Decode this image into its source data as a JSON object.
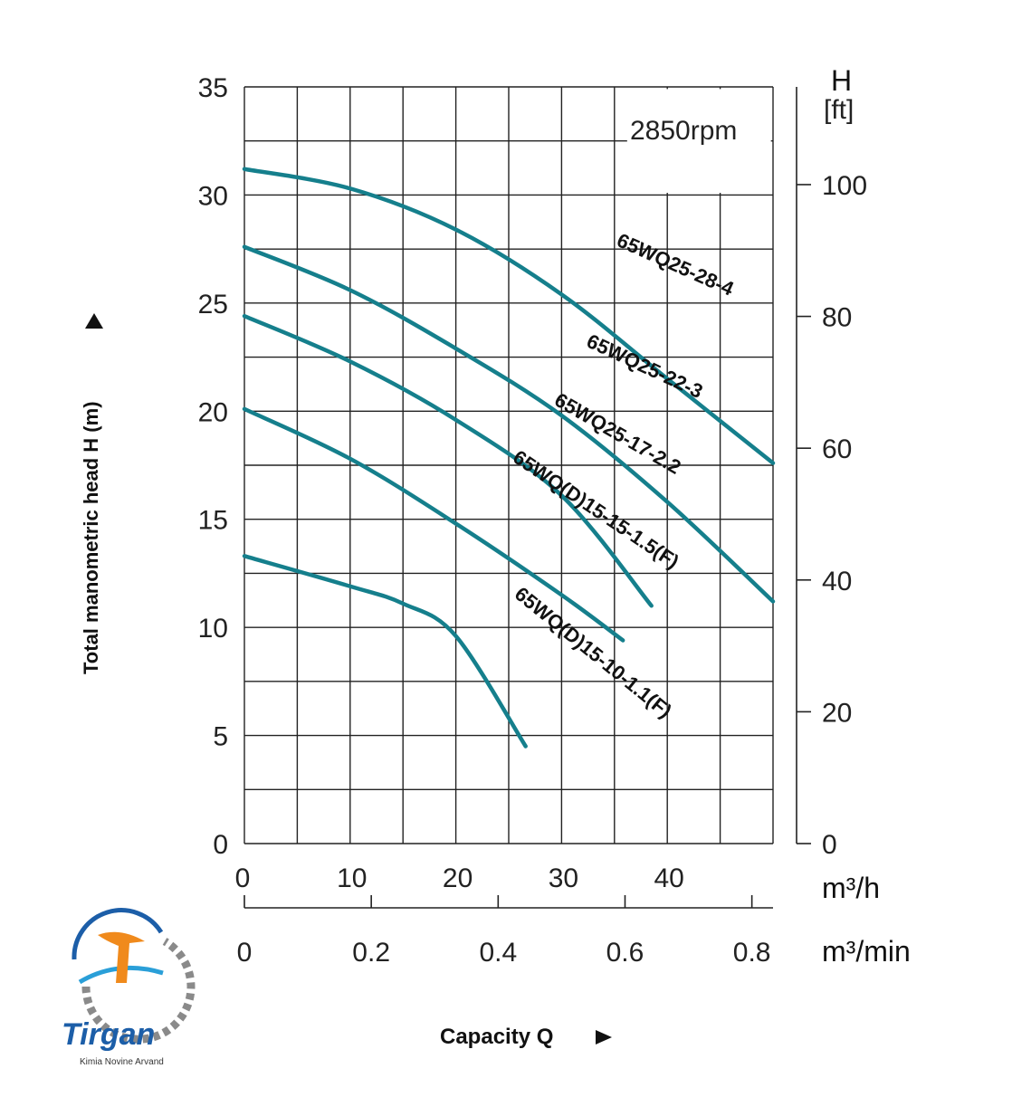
{
  "chart_data": {
    "type": "line",
    "speed_label": "2850rpm",
    "ylabel": "Total manometric head H (m)",
    "xlabel": "Capacity Q",
    "y_unit_right": [
      "H",
      "[ft]"
    ],
    "x_unit_primary": "m³/h",
    "x_unit_secondary": "m³/min",
    "ylim": [
      0,
      35
    ],
    "xlim": [
      0,
      50
    ],
    "y_ticks": [
      "0",
      "5",
      "10",
      "15",
      "20",
      "25",
      "30",
      "35"
    ],
    "x_ticks_m3h": [
      "0",
      "10",
      "20",
      "30",
      "40"
    ],
    "x_ticks_m3min": [
      "0",
      "0.2",
      "0.4",
      "0.6",
      "0.8"
    ],
    "ft_ticks": [
      "0",
      "20",
      "40",
      "60",
      "80",
      "100"
    ],
    "grid": true,
    "series": [
      {
        "name": "65WQ25-28-4",
        "x": [
          0,
          10,
          20,
          30,
          40,
          50
        ],
        "y": [
          31.2,
          30.3,
          28.4,
          25.4,
          21.5,
          17.6
        ]
      },
      {
        "name": "65WQ25-22-3",
        "x": [
          0,
          10,
          20,
          30,
          40,
          50
        ],
        "y": [
          27.6,
          25.6,
          22.9,
          19.8,
          15.8,
          11.2
        ]
      },
      {
        "name": "65WQ25-17-2.2",
        "x": [
          0,
          10,
          20,
          30,
          38.5
        ],
        "y": [
          24.4,
          22.3,
          19.6,
          16.1,
          11.0
        ]
      },
      {
        "name": "65WQ(D)15-15-1.5(F)",
        "x": [
          0,
          10,
          20,
          30,
          35.8
        ],
        "y": [
          20.1,
          17.8,
          14.8,
          11.5,
          9.4
        ]
      },
      {
        "name": "65WQ(D)15-10-1.1(F)",
        "x": [
          0,
          10,
          15,
          20,
          26.6
        ],
        "y": [
          13.3,
          11.9,
          11.1,
          9.6,
          4.5
        ]
      }
    ]
  },
  "logo": {
    "name": "Tirgan",
    "tagline": "Kimia Novine Arvand"
  }
}
